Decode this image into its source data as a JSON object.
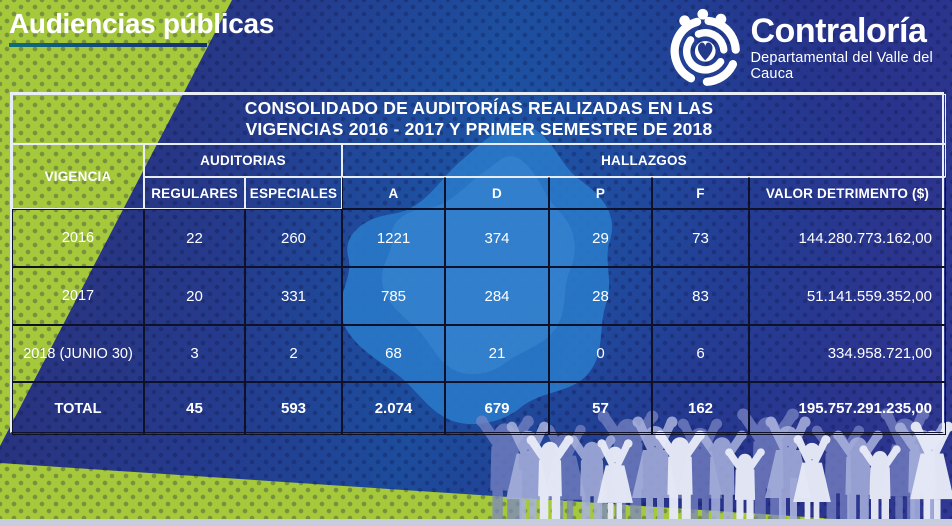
{
  "banner": {
    "title": "Audiencias públicas"
  },
  "logo": {
    "name": "Contraloría",
    "subtitle": "Departamental del Valle del Cauca"
  },
  "table": {
    "title_line1": "CONSOLIDADO DE AUDITORÍAS REALIZADAS EN LAS",
    "title_line2": "VIGENCIAS 2016 - 2017 Y PRIMER SEMESTRE DE 2018",
    "group_headers": {
      "vigencia": "VIGENCIA",
      "auditorias": "AUDITORIAS",
      "hallazgos": "HALLAZGOS"
    },
    "columns": [
      "REGULARES",
      "ESPECIALES",
      "A",
      "D",
      "P",
      "F",
      "VALOR DETRIMENTO ($)"
    ],
    "rows": [
      {
        "label": "2016",
        "regulares": "22",
        "especiales": "260",
        "a": "1221",
        "d": "374",
        "p": "29",
        "f": "73",
        "valor": "144.280.773.162,00",
        "total": false
      },
      {
        "label": "2017",
        "regulares": "20",
        "especiales": "331",
        "a": "785",
        "d": "284",
        "p": "28",
        "f": "83",
        "valor": "51.141.559.352,00",
        "total": false
      },
      {
        "label": "2018 (JUNIO 30)",
        "regulares": "3",
        "especiales": "2",
        "a": "68",
        "d": "21",
        "p": "0",
        "f": "6",
        "valor": "334.958.721,00",
        "total": false
      },
      {
        "label": "TOTAL",
        "regulares": "45",
        "especiales": "593",
        "a": "2.074",
        "d": "679",
        "p": "57",
        "f": "162",
        "valor": "195.757.291.235,00",
        "total": true
      }
    ]
  },
  "colors": {
    "accent_green": "#a5c93a",
    "background_navy": "#273383",
    "map_blue": "#2a7ac9",
    "header_blue": "#1d4a9a",
    "border_light": "#e9edf5",
    "border_dark": "#0e1128",
    "crowd_light": "#e7eaf7",
    "bottom_strip": "#c7ccdf"
  }
}
